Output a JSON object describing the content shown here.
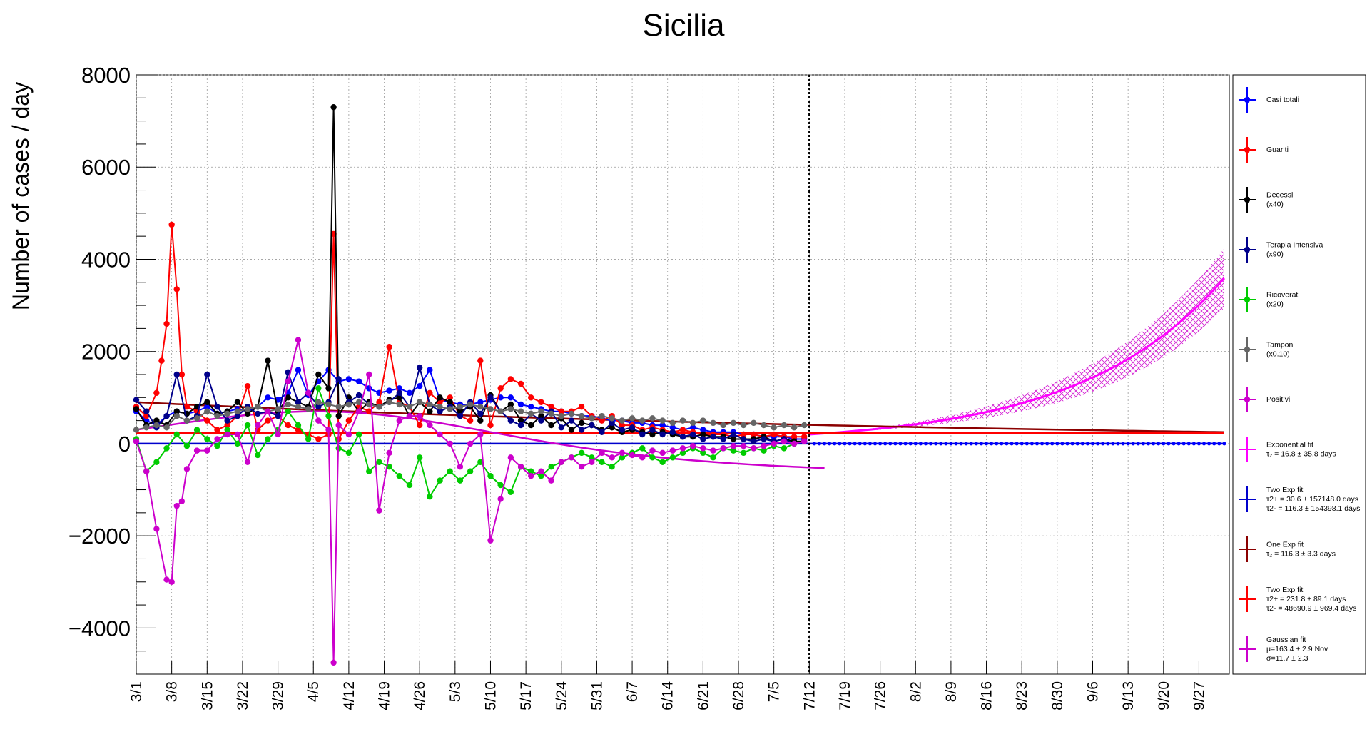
{
  "chart_data": {
    "type": "line",
    "title": "Sicilia",
    "ylabel": "Number of cases / day",
    "xlabel": "",
    "ylim": [
      -5000,
      8000
    ],
    "yticks": [
      -4000,
      -2000,
      0,
      2000,
      4000,
      6000,
      8000
    ],
    "ytick_labels": [
      "−4000",
      "−2000",
      "0",
      "2000",
      "4000",
      "6000",
      "8000"
    ],
    "x_range_days": [
      0,
      216
    ],
    "x_unit": "days since 3/1",
    "data_end_day": 133,
    "grid": true,
    "legend_position": "right",
    "categories": [
      "3/1",
      "3/8",
      "3/15",
      "3/22",
      "3/29",
      "4/5",
      "4/12",
      "4/19",
      "4/26",
      "5/3",
      "5/10",
      "5/17",
      "5/24",
      "5/31",
      "6/7",
      "6/14",
      "6/21",
      "6/28",
      "7/5",
      "7/12",
      "7/19",
      "7/26",
      "8/2",
      "8/9",
      "8/16",
      "8/23",
      "8/30",
      "9/6",
      "9/13",
      "9/20",
      "9/27"
    ],
    "category_days": [
      0,
      7,
      14,
      21,
      28,
      35,
      42,
      49,
      56,
      63,
      70,
      77,
      84,
      91,
      98,
      105,
      112,
      119,
      126,
      133,
      140,
      147,
      154,
      161,
      168,
      175,
      182,
      189,
      196,
      203,
      210
    ],
    "series": [
      {
        "name": "Casi totali",
        "color": "#0000ff",
        "kind": "points",
        "x": [
          0,
          2,
          4,
          6,
          8,
          10,
          12,
          14,
          16,
          18,
          20,
          22,
          24,
          26,
          28,
          30,
          32,
          34,
          36,
          38,
          40,
          42,
          44,
          46,
          48,
          50,
          52,
          54,
          56,
          58,
          60,
          62,
          64,
          66,
          68,
          70,
          72,
          74,
          76,
          78,
          80,
          82,
          84,
          86,
          88,
          90,
          92,
          94,
          96,
          98,
          100,
          102,
          104,
          106,
          108,
          110,
          112,
          114,
          116,
          118,
          120,
          122,
          124,
          126,
          128,
          130,
          132
        ],
        "y": [
          700,
          500,
          400,
          600,
          700,
          650,
          700,
          800,
          650,
          700,
          750,
          700,
          800,
          1000,
          950,
          1100,
          1600,
          1050,
          1350,
          1600,
          1350,
          1400,
          1350,
          1200,
          1100,
          1150,
          1200,
          1100,
          1250,
          1600,
          950,
          900,
          850,
          850,
          900,
          950,
          1000,
          1000,
          850,
          800,
          750,
          700,
          700,
          650,
          600,
          600,
          550,
          500,
          500,
          450,
          450,
          400,
          400,
          350,
          300,
          350,
          300,
          250,
          250,
          250,
          200,
          200,
          150,
          150,
          150,
          100,
          100
        ]
      },
      {
        "name": "Guariti",
        "color": "#ff0000",
        "kind": "points",
        "x": [
          0,
          2,
          4,
          5,
          6,
          7,
          8,
          9,
          10,
          12,
          14,
          16,
          18,
          20,
          22,
          24,
          26,
          28,
          30,
          32,
          34,
          36,
          38,
          39,
          40,
          42,
          44,
          46,
          48,
          50,
          52,
          54,
          56,
          58,
          60,
          62,
          64,
          66,
          68,
          70,
          72,
          74,
          76,
          78,
          80,
          82,
          84,
          86,
          88,
          90,
          92,
          94,
          96,
          98,
          100,
          102,
          104,
          106,
          108,
          110,
          112,
          114,
          116,
          118,
          120,
          122,
          124,
          126,
          128,
          130,
          132
        ],
        "y": [
          800,
          600,
          1100,
          1800,
          2600,
          4750,
          3350,
          1500,
          800,
          700,
          500,
          300,
          400,
          600,
          1250,
          300,
          500,
          600,
          400,
          300,
          200,
          100,
          200,
          4550,
          100,
          500,
          800,
          700,
          900,
          2100,
          900,
          800,
          400,
          1100,
          900,
          1000,
          600,
          500,
          1800,
          400,
          1200,
          1400,
          1300,
          1000,
          900,
          800,
          700,
          700,
          800,
          600,
          500,
          600,
          400,
          400,
          300,
          350,
          300,
          250,
          300,
          250,
          200,
          200,
          200,
          150,
          200,
          200,
          150,
          200,
          150,
          150,
          150
        ]
      },
      {
        "name": "Decessi",
        "note": "(x40)",
        "color": "#000000",
        "kind": "points",
        "x": [
          0,
          2,
          4,
          6,
          8,
          10,
          12,
          14,
          16,
          18,
          20,
          22,
          24,
          26,
          28,
          30,
          32,
          34,
          36,
          38,
          39,
          40,
          42,
          44,
          46,
          48,
          50,
          52,
          54,
          56,
          58,
          60,
          62,
          64,
          66,
          68,
          70,
          72,
          74,
          76,
          78,
          80,
          82,
          84,
          86,
          88,
          90,
          92,
          94,
          96,
          98,
          100,
          102,
          104,
          106,
          108,
          110,
          112,
          114,
          116,
          118,
          120,
          122,
          124,
          126,
          128,
          130,
          132
        ],
        "y": [
          750,
          400,
          500,
          400,
          700,
          650,
          800,
          900,
          650,
          700,
          900,
          650,
          800,
          1800,
          700,
          1000,
          900,
          800,
          1500,
          1200,
          7300,
          600,
          1000,
          700,
          900,
          800,
          950,
          1000,
          600,
          900,
          700,
          1000,
          900,
          700,
          800,
          500,
          1050,
          700,
          850,
          500,
          400,
          600,
          400,
          550,
          300,
          450,
          400,
          300,
          350,
          250,
          300,
          250,
          200,
          250,
          200,
          150,
          150,
          200,
          150,
          150,
          100,
          100,
          100,
          150,
          50,
          100,
          50,
          50
        ]
      },
      {
        "name": "Terapia Intensiva",
        "note": "(x90)",
        "color": "#00008b",
        "kind": "points",
        "x": [
          0,
          2,
          4,
          6,
          8,
          10,
          12,
          14,
          16,
          18,
          20,
          22,
          24,
          26,
          28,
          30,
          32,
          34,
          36,
          38,
          40,
          42,
          44,
          46,
          48,
          50,
          52,
          54,
          56,
          58,
          60,
          62,
          64,
          66,
          68,
          70,
          72,
          74,
          76,
          78,
          80,
          82,
          84,
          86,
          88,
          90,
          92,
          94,
          96,
          98,
          100,
          102,
          104,
          106,
          108,
          110,
          112,
          114,
          116,
          118,
          120,
          122,
          124,
          126,
          128,
          130,
          132
        ],
        "y": [
          950,
          700,
          350,
          600,
          1500,
          500,
          600,
          1500,
          800,
          500,
          600,
          800,
          650,
          700,
          600,
          1550,
          900,
          1100,
          800,
          900,
          1400,
          900,
          1050,
          850,
          800,
          900,
          1100,
          800,
          1650,
          850,
          700,
          800,
          600,
          900,
          650,
          1000,
          700,
          500,
          400,
          650,
          500,
          700,
          350,
          500,
          300,
          400,
          250,
          450,
          300,
          350,
          200,
          300,
          200,
          250,
          150,
          200,
          100,
          150,
          100,
          200,
          100,
          50,
          100,
          50,
          100,
          0,
          50
        ]
      },
      {
        "name": "Ricoverati",
        "note": "(x20)",
        "color": "#00cc00",
        "kind": "points",
        "x": [
          0,
          2,
          4,
          6,
          8,
          10,
          12,
          14,
          16,
          18,
          20,
          22,
          24,
          26,
          28,
          30,
          32,
          34,
          36,
          38,
          40,
          42,
          44,
          46,
          48,
          50,
          52,
          54,
          56,
          58,
          60,
          62,
          64,
          66,
          68,
          70,
          72,
          74,
          76,
          78,
          80,
          82,
          84,
          86,
          88,
          90,
          92,
          94,
          96,
          98,
          100,
          102,
          104,
          106,
          108,
          110,
          112,
          114,
          116,
          118,
          120,
          122,
          124,
          126,
          128,
          130,
          132
        ],
        "y": [
          100,
          -600,
          -400,
          -100,
          200,
          -50,
          300,
          100,
          -50,
          300,
          0,
          400,
          -250,
          100,
          300,
          700,
          400,
          100,
          1200,
          600,
          -100,
          -200,
          200,
          -600,
          -400,
          -500,
          -700,
          -900,
          -300,
          -1150,
          -800,
          -600,
          -800,
          -600,
          -400,
          -700,
          -900,
          -1050,
          -500,
          -600,
          -700,
          -500,
          -400,
          -300,
          -200,
          -300,
          -400,
          -500,
          -300,
          -200,
          -100,
          -300,
          -400,
          -300,
          -200,
          -100,
          -200,
          -300,
          -100,
          -150,
          -200,
          -100,
          -150,
          -50,
          -100,
          0,
          50
        ]
      },
      {
        "name": "Tamponi",
        "note": "(x0.10)",
        "color": "#666666",
        "kind": "points",
        "x": [
          0,
          2,
          4,
          6,
          8,
          10,
          12,
          14,
          16,
          18,
          20,
          22,
          24,
          26,
          28,
          30,
          32,
          34,
          36,
          38,
          40,
          42,
          44,
          46,
          48,
          50,
          52,
          54,
          56,
          58,
          60,
          62,
          64,
          66,
          68,
          70,
          72,
          74,
          76,
          78,
          80,
          82,
          84,
          86,
          88,
          90,
          92,
          94,
          96,
          98,
          100,
          102,
          104,
          106,
          108,
          110,
          112,
          114,
          116,
          118,
          120,
          122,
          124,
          126,
          128,
          130,
          132
        ],
        "y": [
          300,
          350,
          400,
          350,
          600,
          500,
          550,
          700,
          600,
          650,
          700,
          750,
          800,
          700,
          750,
          850,
          800,
          750,
          900,
          850,
          800,
          850,
          900,
          850,
          800,
          900,
          850,
          800,
          900,
          850,
          800,
          750,
          800,
          850,
          800,
          750,
          700,
          750,
          700,
          650,
          700,
          650,
          600,
          650,
          600,
          550,
          600,
          550,
          500,
          550,
          500,
          550,
          500,
          450,
          500,
          450,
          500,
          450,
          400,
          450,
          400,
          450,
          400,
          350,
          400,
          350,
          400
        ]
      },
      {
        "name": "Positivi",
        "color": "#cc00cc",
        "kind": "points",
        "x": [
          0,
          2,
          4,
          6,
          7,
          8,
          9,
          10,
          12,
          14,
          16,
          18,
          20,
          22,
          24,
          26,
          28,
          30,
          32,
          34,
          36,
          38,
          39,
          40,
          42,
          44,
          46,
          48,
          50,
          52,
          54,
          56,
          58,
          60,
          62,
          64,
          66,
          68,
          70,
          72,
          74,
          76,
          78,
          80,
          82,
          84,
          86,
          88,
          90,
          92,
          94,
          96,
          98,
          100,
          102,
          104,
          106,
          108,
          110,
          112,
          114,
          116,
          118,
          120,
          122,
          124,
          126,
          128,
          130,
          132
        ],
        "y": [
          50,
          -600,
          -1850,
          -2950,
          -3000,
          -1350,
          -1250,
          -550,
          -150,
          -150,
          100,
          200,
          200,
          -400,
          400,
          700,
          200,
          1350,
          2250,
          1100,
          500,
          300,
          -4750,
          400,
          200,
          700,
          1500,
          -1450,
          -200,
          500,
          600,
          600,
          400,
          200,
          0,
          -500,
          0,
          200,
          -2100,
          -1200,
          -300,
          -500,
          -700,
          -600,
          -800,
          -400,
          -300,
          -500,
          -400,
          -200,
          -300,
          -200,
          -250,
          -300,
          -150,
          -200,
          -150,
          -100,
          -50,
          -100,
          -150,
          -100,
          -50,
          -50,
          -100,
          -50,
          0,
          50,
          0,
          50
        ]
      }
    ],
    "fits": [
      {
        "name": "Exponential fit",
        "detail": "τ₂ = 16.8 ± 35.8 days",
        "color": "#ff00ff",
        "kind": "exp",
        "x0": 133,
        "y0": 200,
        "tau": 28.4,
        "band": true
      },
      {
        "name": "Two Exp fit",
        "detail_1": "τ2+ = 30.6 ± 157148.0 days",
        "detail_2": "τ2- = 116.3 ± 154398.1 days",
        "color": "#0000cc",
        "kind": "flat",
        "value": 0
      },
      {
        "name": "One Exp fit",
        "detail": "τ₂ = 116.3 ± 3.3 days",
        "color": "#8b0000",
        "kind": "decay",
        "a": 900,
        "tau": 168
      },
      {
        "name": "Two Exp fit",
        "detail_1": "τ2+ = 231.8 ± 89.1 days",
        "detail_2": "τ2- = 48690.9 ± 969.4 days",
        "color": "#ff0000",
        "kind": "flat",
        "value": 230
      },
      {
        "name": "Gaussian fit",
        "detail_1": "μ=163.4 ± 2.9 Nov",
        "detail_2": "σ=11.7 ± 2.3",
        "color": "#cc00cc",
        "kind": "gauss",
        "amp": 700,
        "mu": 36,
        "sigma": 30,
        "offset": -650
      }
    ],
    "legend": [
      {
        "label": "Casi totali",
        "sub": "",
        "color": "#0000ff",
        "marker": true
      },
      {
        "label": "Guariti",
        "sub": "",
        "color": "#ff0000",
        "marker": true
      },
      {
        "label": "Decessi",
        "sub": "(x40)",
        "color": "#000000",
        "marker": true
      },
      {
        "label": "Terapia Intensiva",
        "sub": "(x90)",
        "color": "#00008b",
        "marker": true
      },
      {
        "label": "Ricoverati",
        "sub": "(x20)",
        "color": "#00cc00",
        "marker": true
      },
      {
        "label": "Tamponi",
        "sub": "(x0.10)",
        "color": "#666666",
        "marker": true
      },
      {
        "label": "Positivi",
        "sub": "",
        "color": "#cc00cc",
        "marker": true
      },
      {
        "label": "Exponential fit",
        "sub": "τ₂ = 16.8  ± 35.8 days",
        "sub2": "",
        "color": "#ff00ff",
        "marker": false
      },
      {
        "label": "Two Exp fit",
        "sub": "τ2+ = 30.6 ± 157148.0 days",
        "sub2": "τ2- = 116.3 ± 154398.1 days",
        "color": "#0000cc",
        "marker": false
      },
      {
        "label": "One Exp fit",
        "sub": "τ₂ = 116.3  ± 3.3 days",
        "sub2": "",
        "color": "#8b0000",
        "marker": false
      },
      {
        "label": "Two Exp fit",
        "sub": "τ2+ = 231.8 ± 89.1 days",
        "sub2": "τ2- = 48690.9 ± 969.4 days",
        "color": "#ff0000",
        "marker": false
      },
      {
        "label": "Gaussian fit",
        "sub": "μ=163.4 ± 2.9 Nov",
        "sub2": "σ=11.7 ± 2.3",
        "color": "#cc00cc",
        "marker": false
      }
    ]
  }
}
